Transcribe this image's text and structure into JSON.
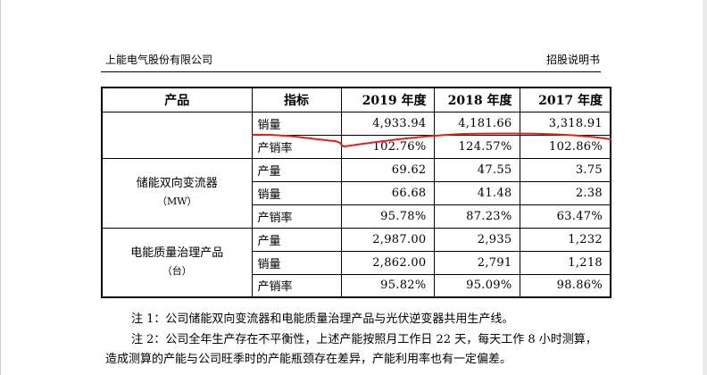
{
  "header": {
    "company": "上能电气股份有限公司",
    "document": "招股说明书"
  },
  "table": {
    "headers": [
      "产品",
      "指标",
      "2019 年度",
      "2018 年度",
      "2017 年度"
    ],
    "groups": [
      {
        "product": "",
        "unit": "",
        "rows": [
          {
            "indicator": "销量",
            "y2019": "4,933.94",
            "y2018": "4,181.66",
            "y2017": "3,318.91"
          },
          {
            "indicator": "产销率",
            "y2019": "102.76%",
            "y2018": "124.57%",
            "y2017": "102.86%"
          }
        ]
      },
      {
        "product": "储能双向变流器",
        "unit": "（MW）",
        "rows": [
          {
            "indicator": "产量",
            "y2019": "69.62",
            "y2018": "47.55",
            "y2017": "3.75"
          },
          {
            "indicator": "销量",
            "y2019": "66.68",
            "y2018": "41.48",
            "y2017": "2.38"
          },
          {
            "indicator": "产销率",
            "y2019": "95.78%",
            "y2018": "87.23%",
            "y2017": "63.47%"
          }
        ]
      },
      {
        "product": "电能质量治理产品",
        "unit": "（台）",
        "rows": [
          {
            "indicator": "产量",
            "y2019": "2,987.00",
            "y2018": "2,935",
            "y2017": "1,232"
          },
          {
            "indicator": "销量",
            "y2019": "2,862.00",
            "y2018": "2,791",
            "y2017": "1,218"
          },
          {
            "indicator": "产销率",
            "y2019": "95.82%",
            "y2018": "95.09%",
            "y2017": "98.86%"
          }
        ]
      }
    ]
  },
  "notes": {
    "note1": "注 1：公司储能双向变流器和电能质量治理产品与光伏逆变器共用生产线。",
    "note2_line1": "注 2：公司全年生产存在不平衡性，上述产能按照月工作日 22 天，每天工作 8 小时测算，",
    "note2_line2": "造成测算的产能与公司旺季时的产能瓶颈存在差异，产能利用率也有一定偏差。"
  },
  "annotation": {
    "stroke_color": "#e0201a"
  }
}
